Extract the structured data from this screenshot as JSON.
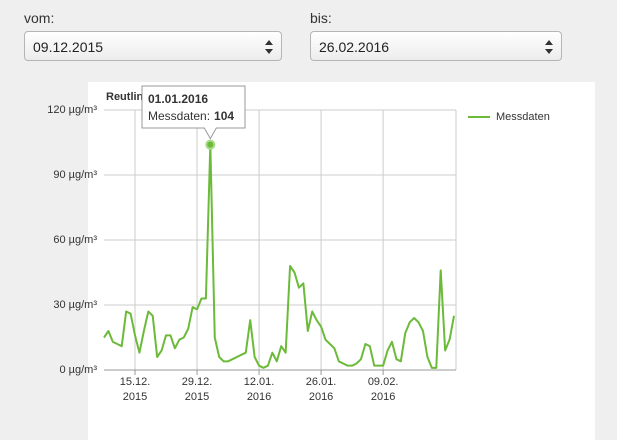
{
  "form": {
    "from_label": "vom:",
    "from_value": "09.12.2015",
    "to_label": "bis:",
    "to_value": "26.02.2016"
  },
  "chart_data": {
    "type": "line",
    "title": "Reutlin",
    "categories": [
      null,
      null,
      null,
      null,
      null,
      null,
      null,
      "15.12.\n2015",
      null,
      null,
      null,
      null,
      null,
      null,
      null,
      null,
      null,
      null,
      null,
      null,
      null,
      "29.12.\n2015",
      null,
      null,
      null,
      null,
      null,
      null,
      null,
      null,
      null,
      null,
      null,
      null,
      null,
      "12.01.\n2016",
      null,
      null,
      null,
      null,
      null,
      null,
      null,
      null,
      null,
      null,
      null,
      null,
      null,
      "26.01.\n2016",
      null,
      null,
      null,
      null,
      null,
      null,
      null,
      null,
      null,
      null,
      null,
      null,
      null,
      "09.02.\n2016",
      null,
      null,
      null,
      null,
      null,
      null,
      null,
      null,
      null,
      null,
      null,
      null,
      null,
      null,
      null,
      null
    ],
    "series": [
      {
        "name": "Messdaten",
        "color": "#6cba3a",
        "values": [
          15,
          18,
          13,
          12,
          11,
          27,
          26,
          16,
          8,
          18,
          27,
          25,
          6,
          9,
          16,
          16,
          10,
          14,
          15,
          19,
          29,
          28,
          33,
          33,
          104,
          15,
          6,
          4,
          4,
          5,
          6,
          7,
          8,
          23,
          6,
          2,
          1,
          2,
          8,
          4,
          11,
          8,
          48,
          45,
          38,
          40,
          18,
          27,
          23,
          20,
          14,
          12,
          10,
          4,
          3,
          2,
          2,
          3,
          5,
          12,
          11,
          2,
          2,
          2,
          9,
          13,
          5,
          4,
          17,
          22,
          24,
          22,
          18,
          6,
          1,
          1,
          46,
          9,
          14,
          25
        ]
      }
    ],
    "ylim": [
      0,
      120
    ],
    "yticks": [
      {
        "value": 0,
        "label": "0 µg/m³"
      },
      {
        "value": 30,
        "label": "30 µg/m³"
      },
      {
        "value": 60,
        "label": "60 µg/m³"
      },
      {
        "value": 90,
        "label": "90 µg/m³"
      },
      {
        "value": 120,
        "label": "120 µg/m³"
      }
    ],
    "grid": true,
    "legend": "top-right",
    "tooltip": {
      "date": "01.01.2016",
      "label": "Messdaten:"
    }
  }
}
